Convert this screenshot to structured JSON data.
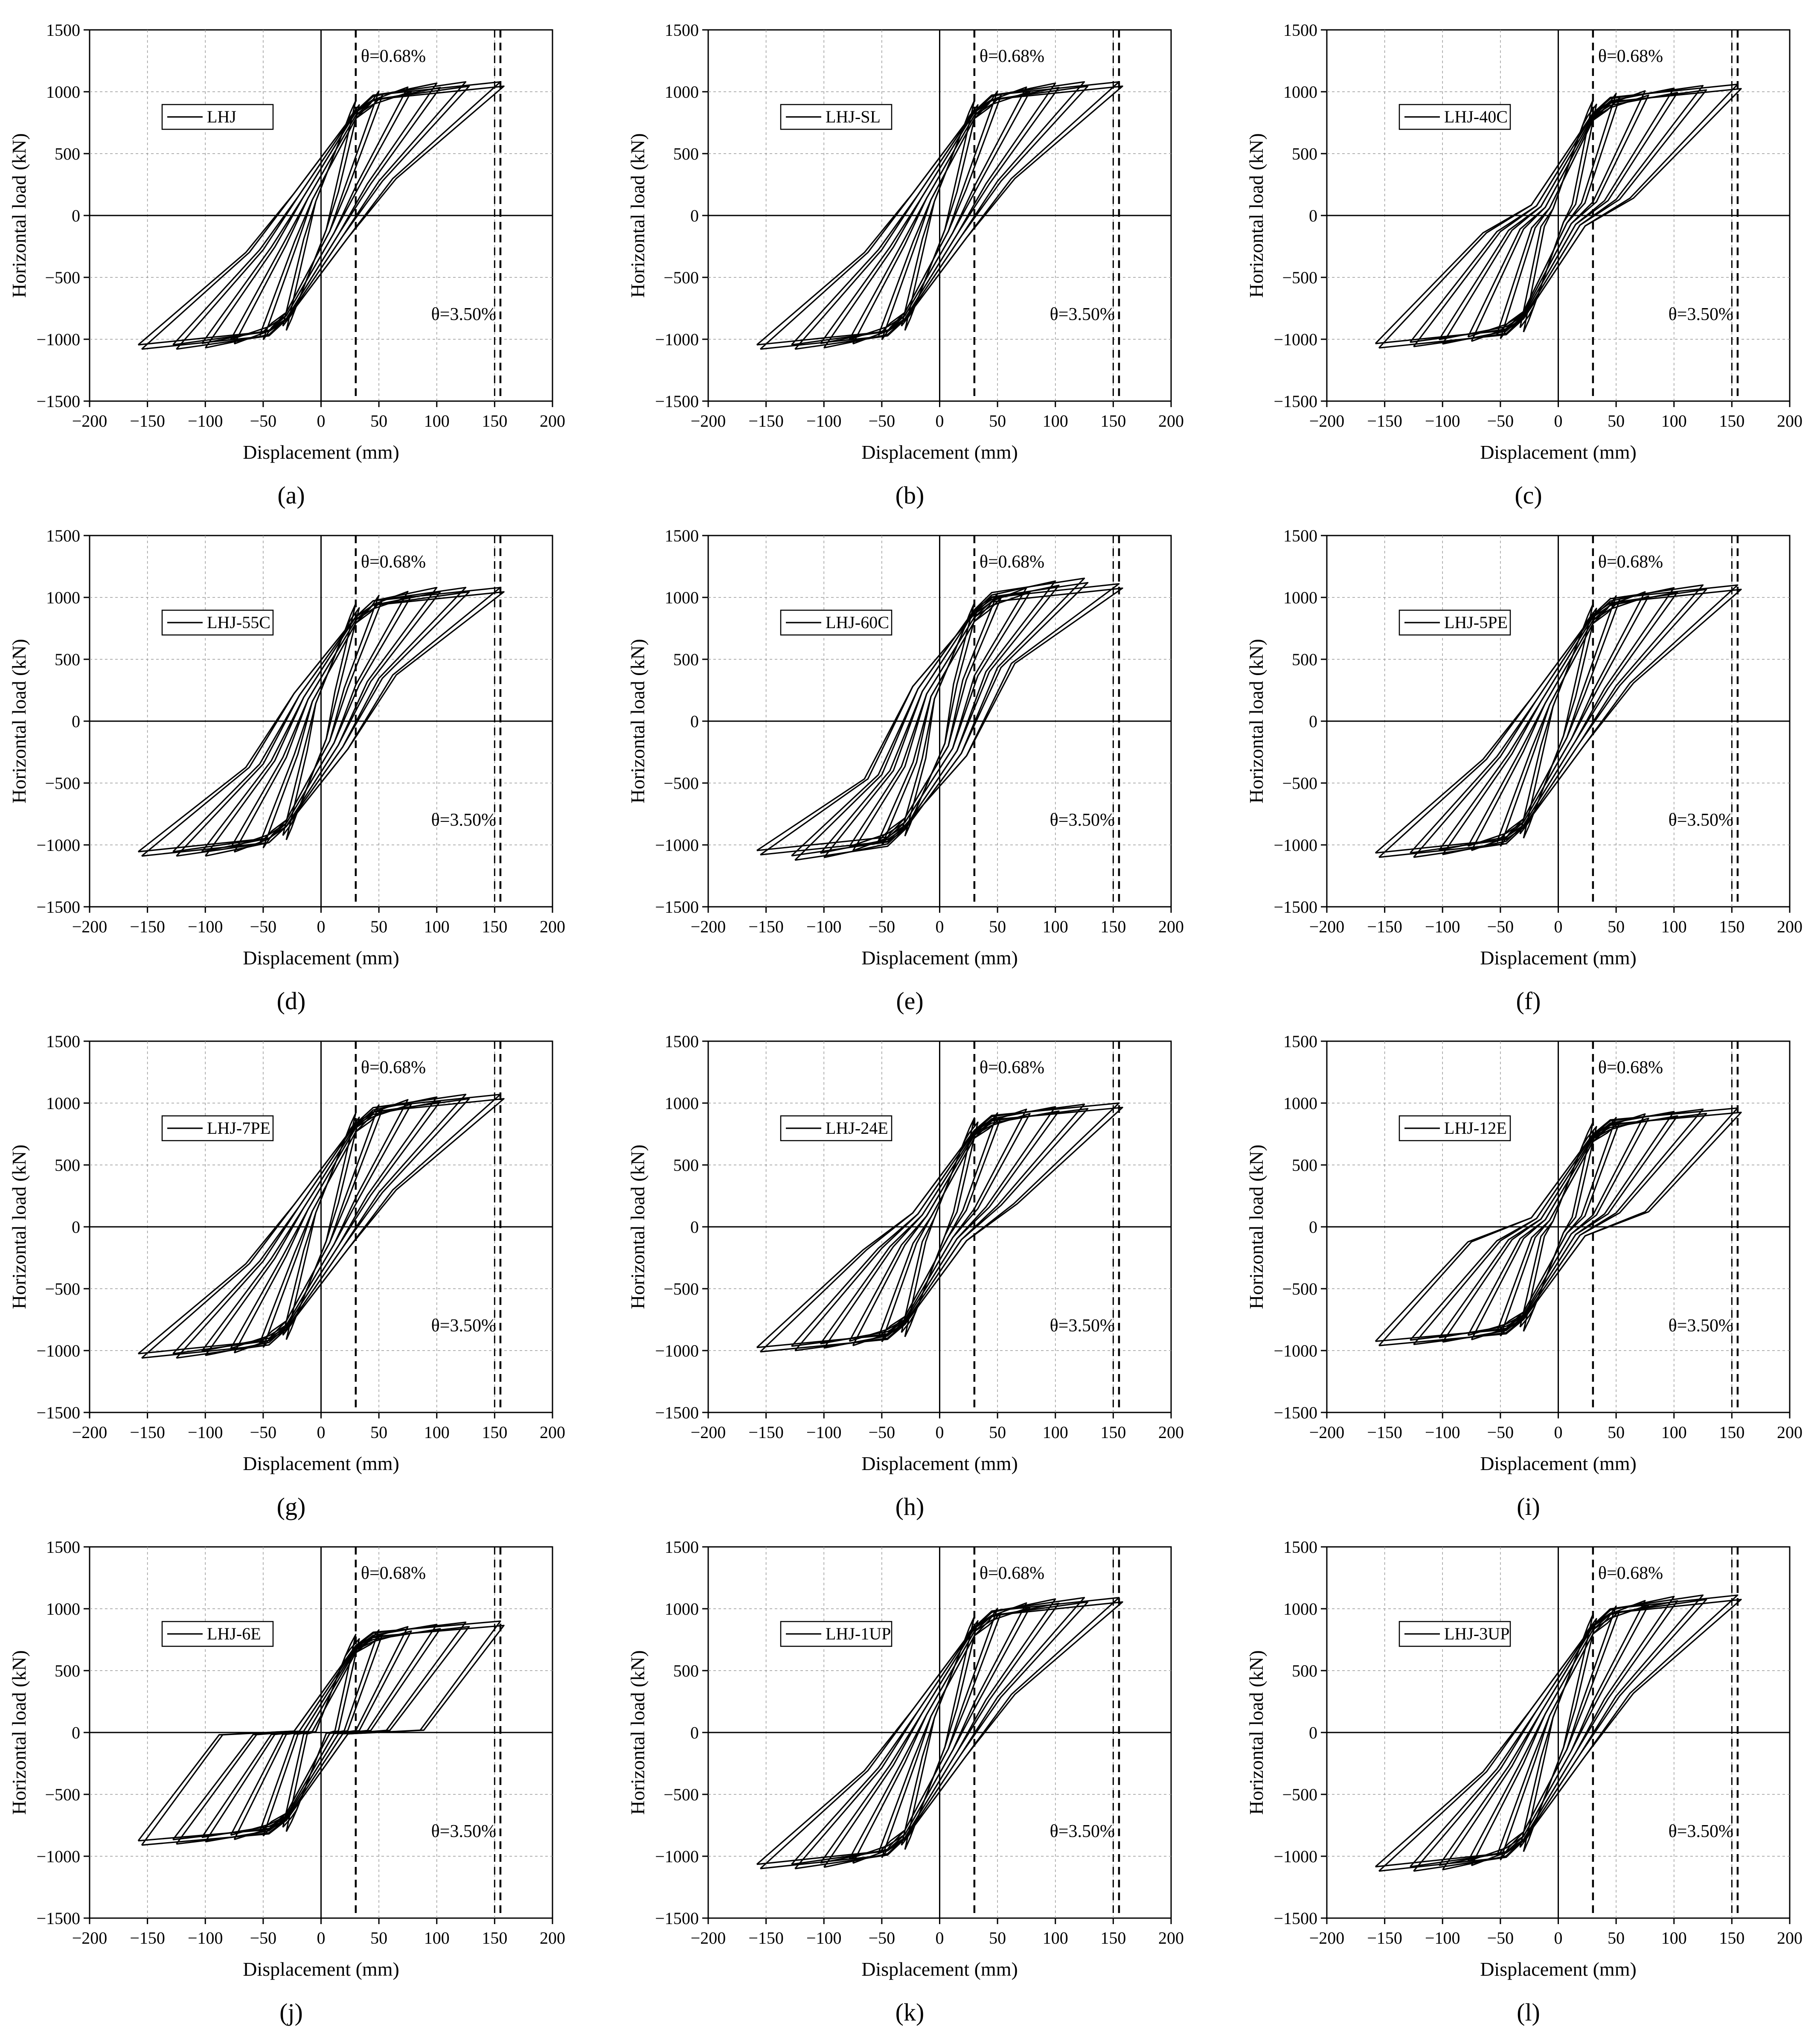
{
  "figure": {
    "panels": [
      {
        "id": "a",
        "label": "(a)",
        "legend": "LHJ",
        "pos_peak": 1080,
        "neg_peak": -1080,
        "pinch": 320,
        "peak_scale": [
          0.86,
          0.93,
          0.96,
          0.99,
          1.0,
          1.0
        ],
        "unload_slope": 11
      },
      {
        "id": "b",
        "label": "(b)",
        "legend": "LHJ-SL",
        "pos_peak": 1080,
        "neg_peak": -1080,
        "pinch": 320,
        "peak_scale": [
          0.86,
          0.93,
          0.96,
          0.99,
          1.0,
          1.0
        ],
        "unload_slope": 11
      },
      {
        "id": "c",
        "label": "(c)",
        "legend": "LHJ-40C",
        "pos_peak": 1060,
        "neg_peak": -1070,
        "pinch": 150,
        "peak_scale": [
          0.88,
          0.93,
          0.95,
          0.97,
          0.99,
          1.0
        ],
        "unload_slope": 11
      },
      {
        "id": "d",
        "label": "(d)",
        "legend": "LHJ-55C",
        "pos_peak": 1080,
        "neg_peak": -1090,
        "pinch": 400,
        "peak_scale": [
          0.88,
          0.94,
          0.97,
          1.0,
          1.0,
          1.0
        ],
        "unload_slope": 8
      },
      {
        "id": "e",
        "label": "(e)",
        "legend": "LHJ-60C",
        "pos_peak": 1110,
        "neg_peak": -1080,
        "pinch": 500,
        "peak_scale": [
          0.86,
          0.93,
          0.97,
          1.02,
          1.04,
          1.0
        ],
        "unload_slope": 6
      },
      {
        "id": "f",
        "label": "(f)",
        "legend": "LHJ-5PE",
        "pos_peak": 1100,
        "neg_peak": -1100,
        "pinch": 330,
        "peak_scale": [
          0.86,
          0.92,
          0.95,
          0.98,
          1.0,
          1.0
        ],
        "unload_slope": 11
      },
      {
        "id": "g",
        "label": "(g)",
        "legend": "LHJ-7PE",
        "pos_peak": 1070,
        "neg_peak": -1060,
        "pinch": 320,
        "peak_scale": [
          0.86,
          0.92,
          0.96,
          0.98,
          1.0,
          1.0
        ],
        "unload_slope": 11
      },
      {
        "id": "h",
        "label": "(h)",
        "legend": "LHJ-24E",
        "pos_peak": 1000,
        "neg_peak": -1010,
        "pinch": 200,
        "peak_scale": [
          0.88,
          0.92,
          0.95,
          0.97,
          0.99,
          1.0
        ],
        "unload_slope": 11
      },
      {
        "id": "i",
        "label": "(i)",
        "legend": "LHJ-12E",
        "pos_peak": 960,
        "neg_peak": -960,
        "pinch": 130,
        "peak_scale": [
          0.88,
          0.92,
          0.95,
          0.97,
          0.99,
          1.0
        ],
        "unload_slope": 12
      },
      {
        "id": "j",
        "label": "(j)",
        "legend": "LHJ-6E",
        "pos_peak": 900,
        "neg_peak": -910,
        "pinch": 20,
        "peak_scale": [
          0.88,
          0.92,
          0.95,
          0.97,
          0.99,
          1.0
        ],
        "unload_slope": 13
      },
      {
        "id": "k",
        "label": "(k)",
        "legend": "LHJ-1UP",
        "pos_peak": 1090,
        "neg_peak": -1100,
        "pinch": 330,
        "peak_scale": [
          0.86,
          0.92,
          0.96,
          0.99,
          1.0,
          1.0
        ],
        "unload_slope": 11
      },
      {
        "id": "l",
        "label": "(l)",
        "legend": "LHJ-3UP",
        "pos_peak": 1110,
        "neg_peak": -1120,
        "pinch": 340,
        "peak_scale": [
          0.86,
          0.92,
          0.96,
          0.99,
          1.0,
          1.0
        ],
        "unload_slope": 11
      }
    ]
  },
  "chart_data": {
    "type": "line",
    "xlabel": "Displacement (mm)",
    "ylabel": "Horizontal load (kN)",
    "xlim": [
      -200,
      200
    ],
    "ylim": [
      -1500,
      1500
    ],
    "xticks": [
      -200,
      -150,
      -100,
      -50,
      0,
      50,
      100,
      150,
      200
    ],
    "yticks": [
      -1500,
      -1000,
      -500,
      0,
      500,
      1000,
      1500
    ],
    "grid": true,
    "reference_lines": [
      {
        "x": 30,
        "label": "θ=0.68%"
      },
      {
        "x": 155,
        "label": "θ=3.50%"
      }
    ],
    "cycle_amplitudes_mm": [
      30,
      50,
      75,
      100,
      125,
      155
    ]
  }
}
